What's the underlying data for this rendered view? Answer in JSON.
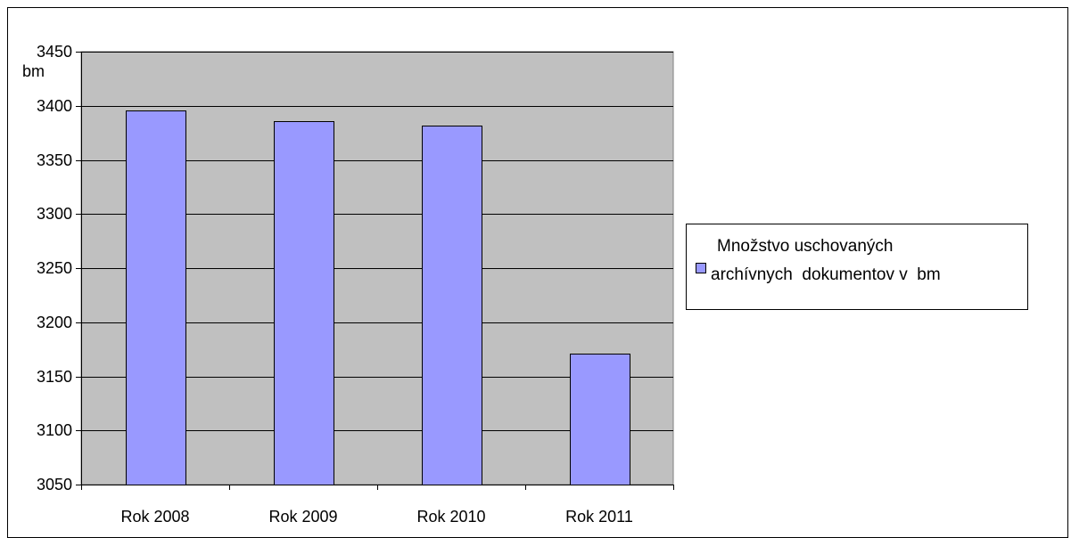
{
  "chart_data": {
    "type": "bar",
    "categories": [
      "Rok 2008",
      "Rok 2009",
      "Rok 2010",
      "Rok 2011"
    ],
    "series": [
      {
        "name": "Množstvo uschovaných archívnych  dokumentov v  bm",
        "values": [
          3396,
          3386,
          3382,
          3171
        ],
        "color": "#9999ff"
      }
    ],
    "title": "",
    "xlabel": "",
    "ylabel": "bm",
    "ylim": [
      3050,
      3450
    ],
    "ytick_step": 50,
    "grid": true,
    "legend_position": "right",
    "plot_background": "#c0c0c0",
    "legend_lines": [
      "Množstvo uschovaných",
      "archívnych  dokumentov v  bm"
    ]
  }
}
